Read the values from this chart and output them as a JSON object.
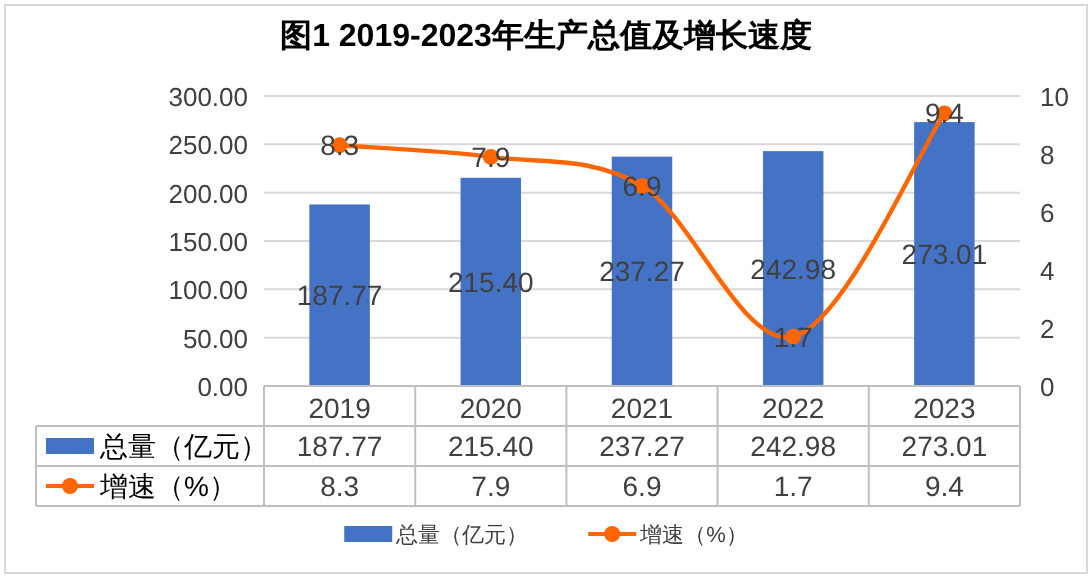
{
  "chart_data": {
    "type": "bar",
    "title": "图1  2019-2023年生产总值及增长速度",
    "categories": [
      "2019",
      "2020",
      "2021",
      "2022",
      "2023"
    ],
    "series": [
      {
        "name": "总量（亿元）",
        "color": "#4472c4",
        "values": [
          187.77,
          215.4,
          237.27,
          242.98,
          273.01
        ],
        "value_labels": [
          "187.77",
          "215.40",
          "237.27",
          "242.98",
          "273.01"
        ]
      },
      {
        "name": "增速（%）",
        "type": "line",
        "axis": "y2",
        "color": "#ff6600",
        "values": [
          8.3,
          7.9,
          6.9,
          1.7,
          9.4
        ],
        "value_labels": [
          "8.3",
          "7.9",
          "6.9",
          "1.7",
          "9.4"
        ]
      }
    ],
    "ylim": [
      0,
      300
    ],
    "yticks": [
      {
        "value": 0,
        "label": "0.00"
      },
      {
        "value": 50,
        "label": "50.00"
      },
      {
        "value": 100,
        "label": "100.00"
      },
      {
        "value": 150,
        "label": "150.00"
      },
      {
        "value": 200,
        "label": "200.00"
      },
      {
        "value": 250,
        "label": "250.00"
      },
      {
        "value": 300,
        "label": "300.00"
      }
    ],
    "y2lim": [
      0,
      10
    ],
    "y2ticks": [
      0,
      2,
      4,
      6,
      8,
      10
    ],
    "grid": "y",
    "legend": "bottom",
    "marker": "circle",
    "line_style": "solid"
  }
}
